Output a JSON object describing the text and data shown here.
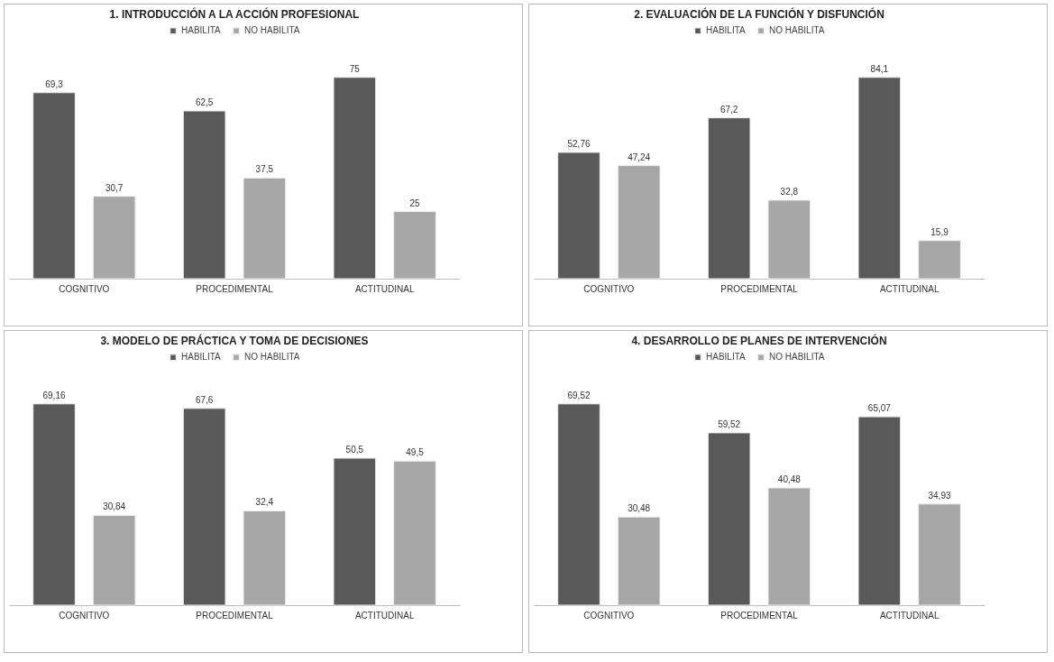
{
  "chart_data": [
    {
      "type": "bar",
      "title": "1. INTRODUCCIÓN A LA ACCIÓN PROFESIONAL",
      "categories": [
        "COGNITIVO",
        "PROCEDIMENTAL",
        "ACTITUDINAL"
      ],
      "legend": "top",
      "series": [
        {
          "name": "HABILITA",
          "color": "#595959",
          "values": [
            69.3,
            62.5,
            75
          ],
          "value_labels": [
            "69,3",
            "62,5",
            "75"
          ]
        },
        {
          "name": "NO HABILITA",
          "color": "#a6a6a6",
          "values": [
            30.7,
            37.5,
            25
          ],
          "value_labels": [
            "30,7",
            "37,5",
            "25"
          ]
        }
      ]
    },
    {
      "type": "bar",
      "title": "2. EVALUACIÓN DE LA FUNCIÓN Y DISFUNCIÓN",
      "categories": [
        "COGNITIVO",
        "PROCEDIMENTAL",
        "ACTITUDINAL"
      ],
      "legend": "top",
      "series": [
        {
          "name": "HABILITA",
          "color": "#595959",
          "values": [
            52.76,
            67.2,
            84.1
          ],
          "value_labels": [
            "52,76",
            "67,2",
            "84,1"
          ]
        },
        {
          "name": "NO HABILITA",
          "color": "#a6a6a6",
          "values": [
            47.24,
            32.8,
            15.9
          ],
          "value_labels": [
            "47,24",
            "32,8",
            "15,9"
          ]
        }
      ]
    },
    {
      "type": "bar",
      "title": "3. MODELO DE PRÁCTICA Y TOMA DE DECISIONES",
      "categories": [
        "COGNITIVO",
        "PROCEDIMENTAL",
        "ACTITUDINAL"
      ],
      "legend": "top",
      "series": [
        {
          "name": "HABILITA",
          "color": "#595959",
          "values": [
            69.16,
            67.6,
            50.5
          ],
          "value_labels": [
            "69,16",
            "67,6",
            "50,5"
          ]
        },
        {
          "name": "NO HABILITA",
          "color": "#a6a6a6",
          "values": [
            30.84,
            32.4,
            49.5
          ],
          "value_labels": [
            "30,84",
            "32,4",
            "49,5"
          ]
        }
      ]
    },
    {
      "type": "bar",
      "title": "4. DESARROLLO DE PLANES DE INTERVENCIÓN",
      "categories": [
        "COGNITIVO",
        "PROCEDIMENTAL",
        "ACTITUDINAL"
      ],
      "legend": "top",
      "series": [
        {
          "name": "HABILITA",
          "color": "#595959",
          "values": [
            69.52,
            59.52,
            65.07
          ],
          "value_labels": [
            "69,52",
            "59,52",
            "65,07"
          ]
        },
        {
          "name": "NO HABILITA",
          "color": "#a6a6a6",
          "values": [
            30.48,
            40.48,
            34.93
          ],
          "value_labels": [
            "30,48",
            "40,48",
            "34,93"
          ]
        }
      ]
    }
  ]
}
